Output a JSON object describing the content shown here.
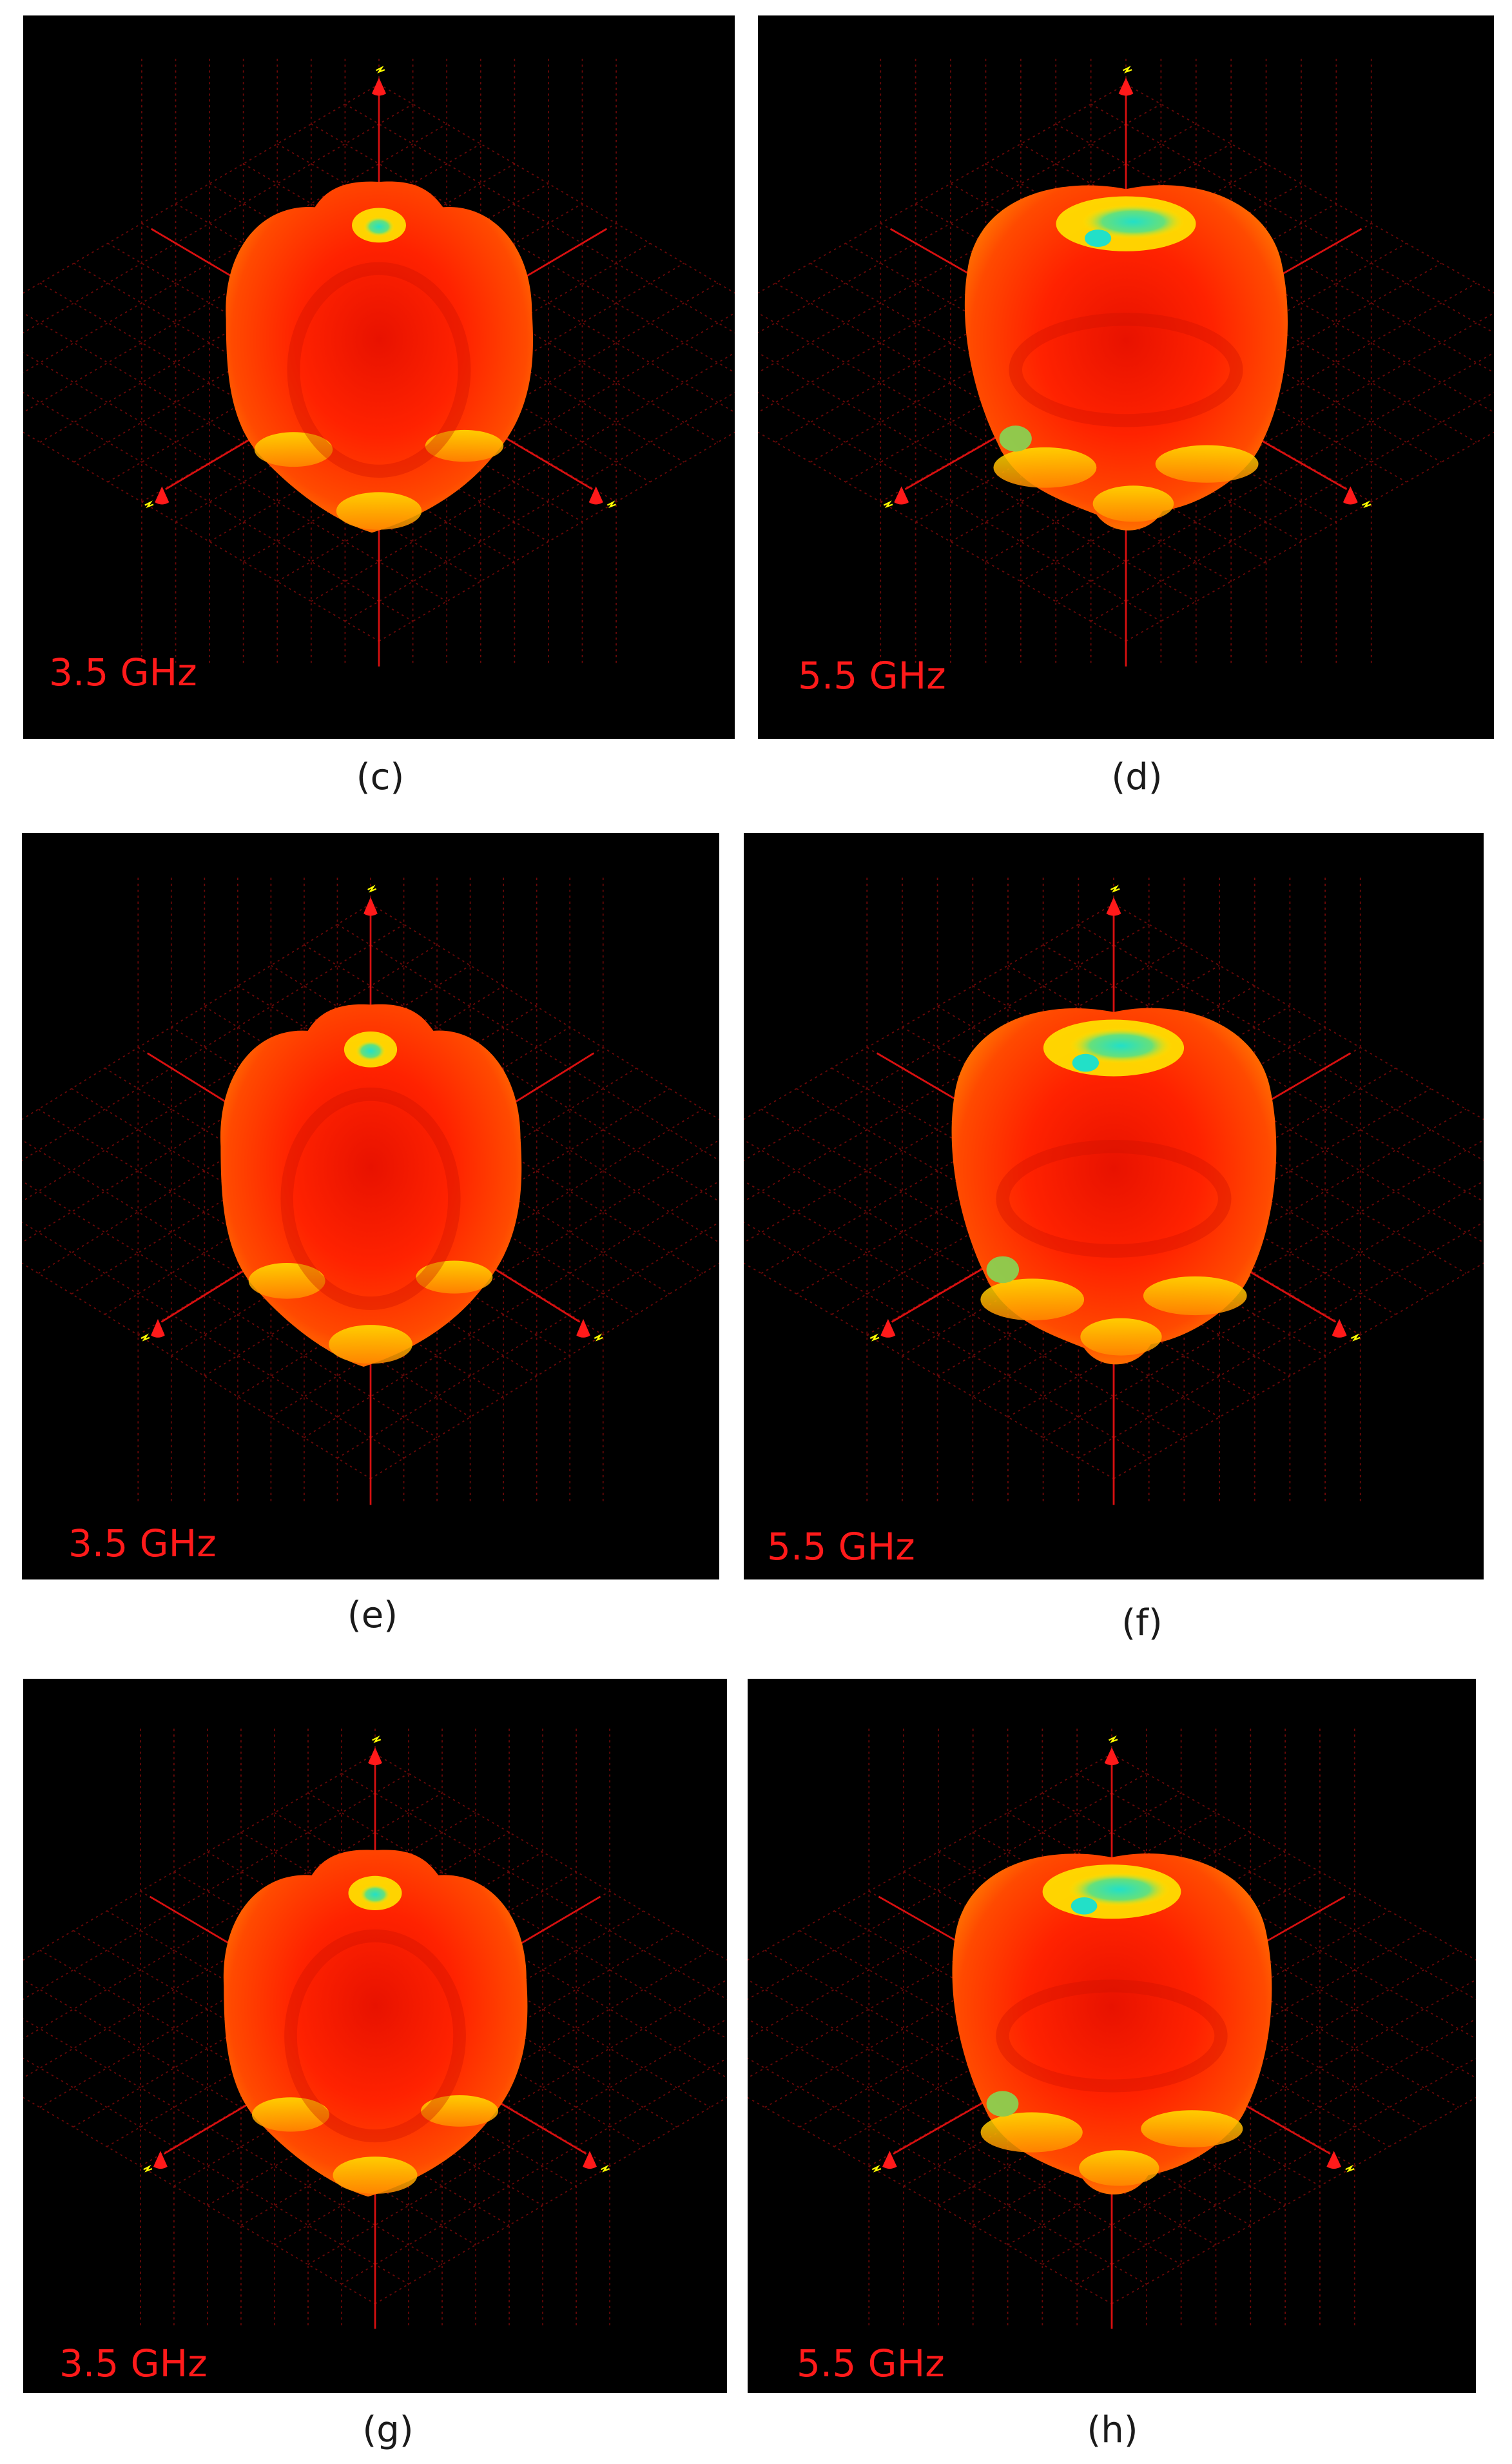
{
  "figure": {
    "panels": [
      {
        "id": "c",
        "caption": "(c)",
        "frequency_label": "3.5 GHz"
      },
      {
        "id": "d",
        "caption": "(d)",
        "frequency_label": "5.5 GHz"
      },
      {
        "id": "e",
        "caption": "(e)",
        "frequency_label": "3.5 GHz"
      },
      {
        "id": "f",
        "caption": "(f)",
        "frequency_label": "5.5 GHz"
      },
      {
        "id": "g",
        "caption": "(g)",
        "frequency_label": "3.5 GHz"
      },
      {
        "id": "h",
        "caption": "(h)",
        "frequency_label": "5.5 GHz"
      }
    ],
    "colors": {
      "background": "#000000",
      "axis": "#d81010",
      "grid": "#6a0808",
      "frequency_text": "#ff1a1a",
      "pattern_high": "#ff2200",
      "pattern_mid": "#ff8a00",
      "pattern_low": "#ffe600",
      "pattern_null": "#22e0c8",
      "axis_tip_label": "#ffff00"
    }
  }
}
